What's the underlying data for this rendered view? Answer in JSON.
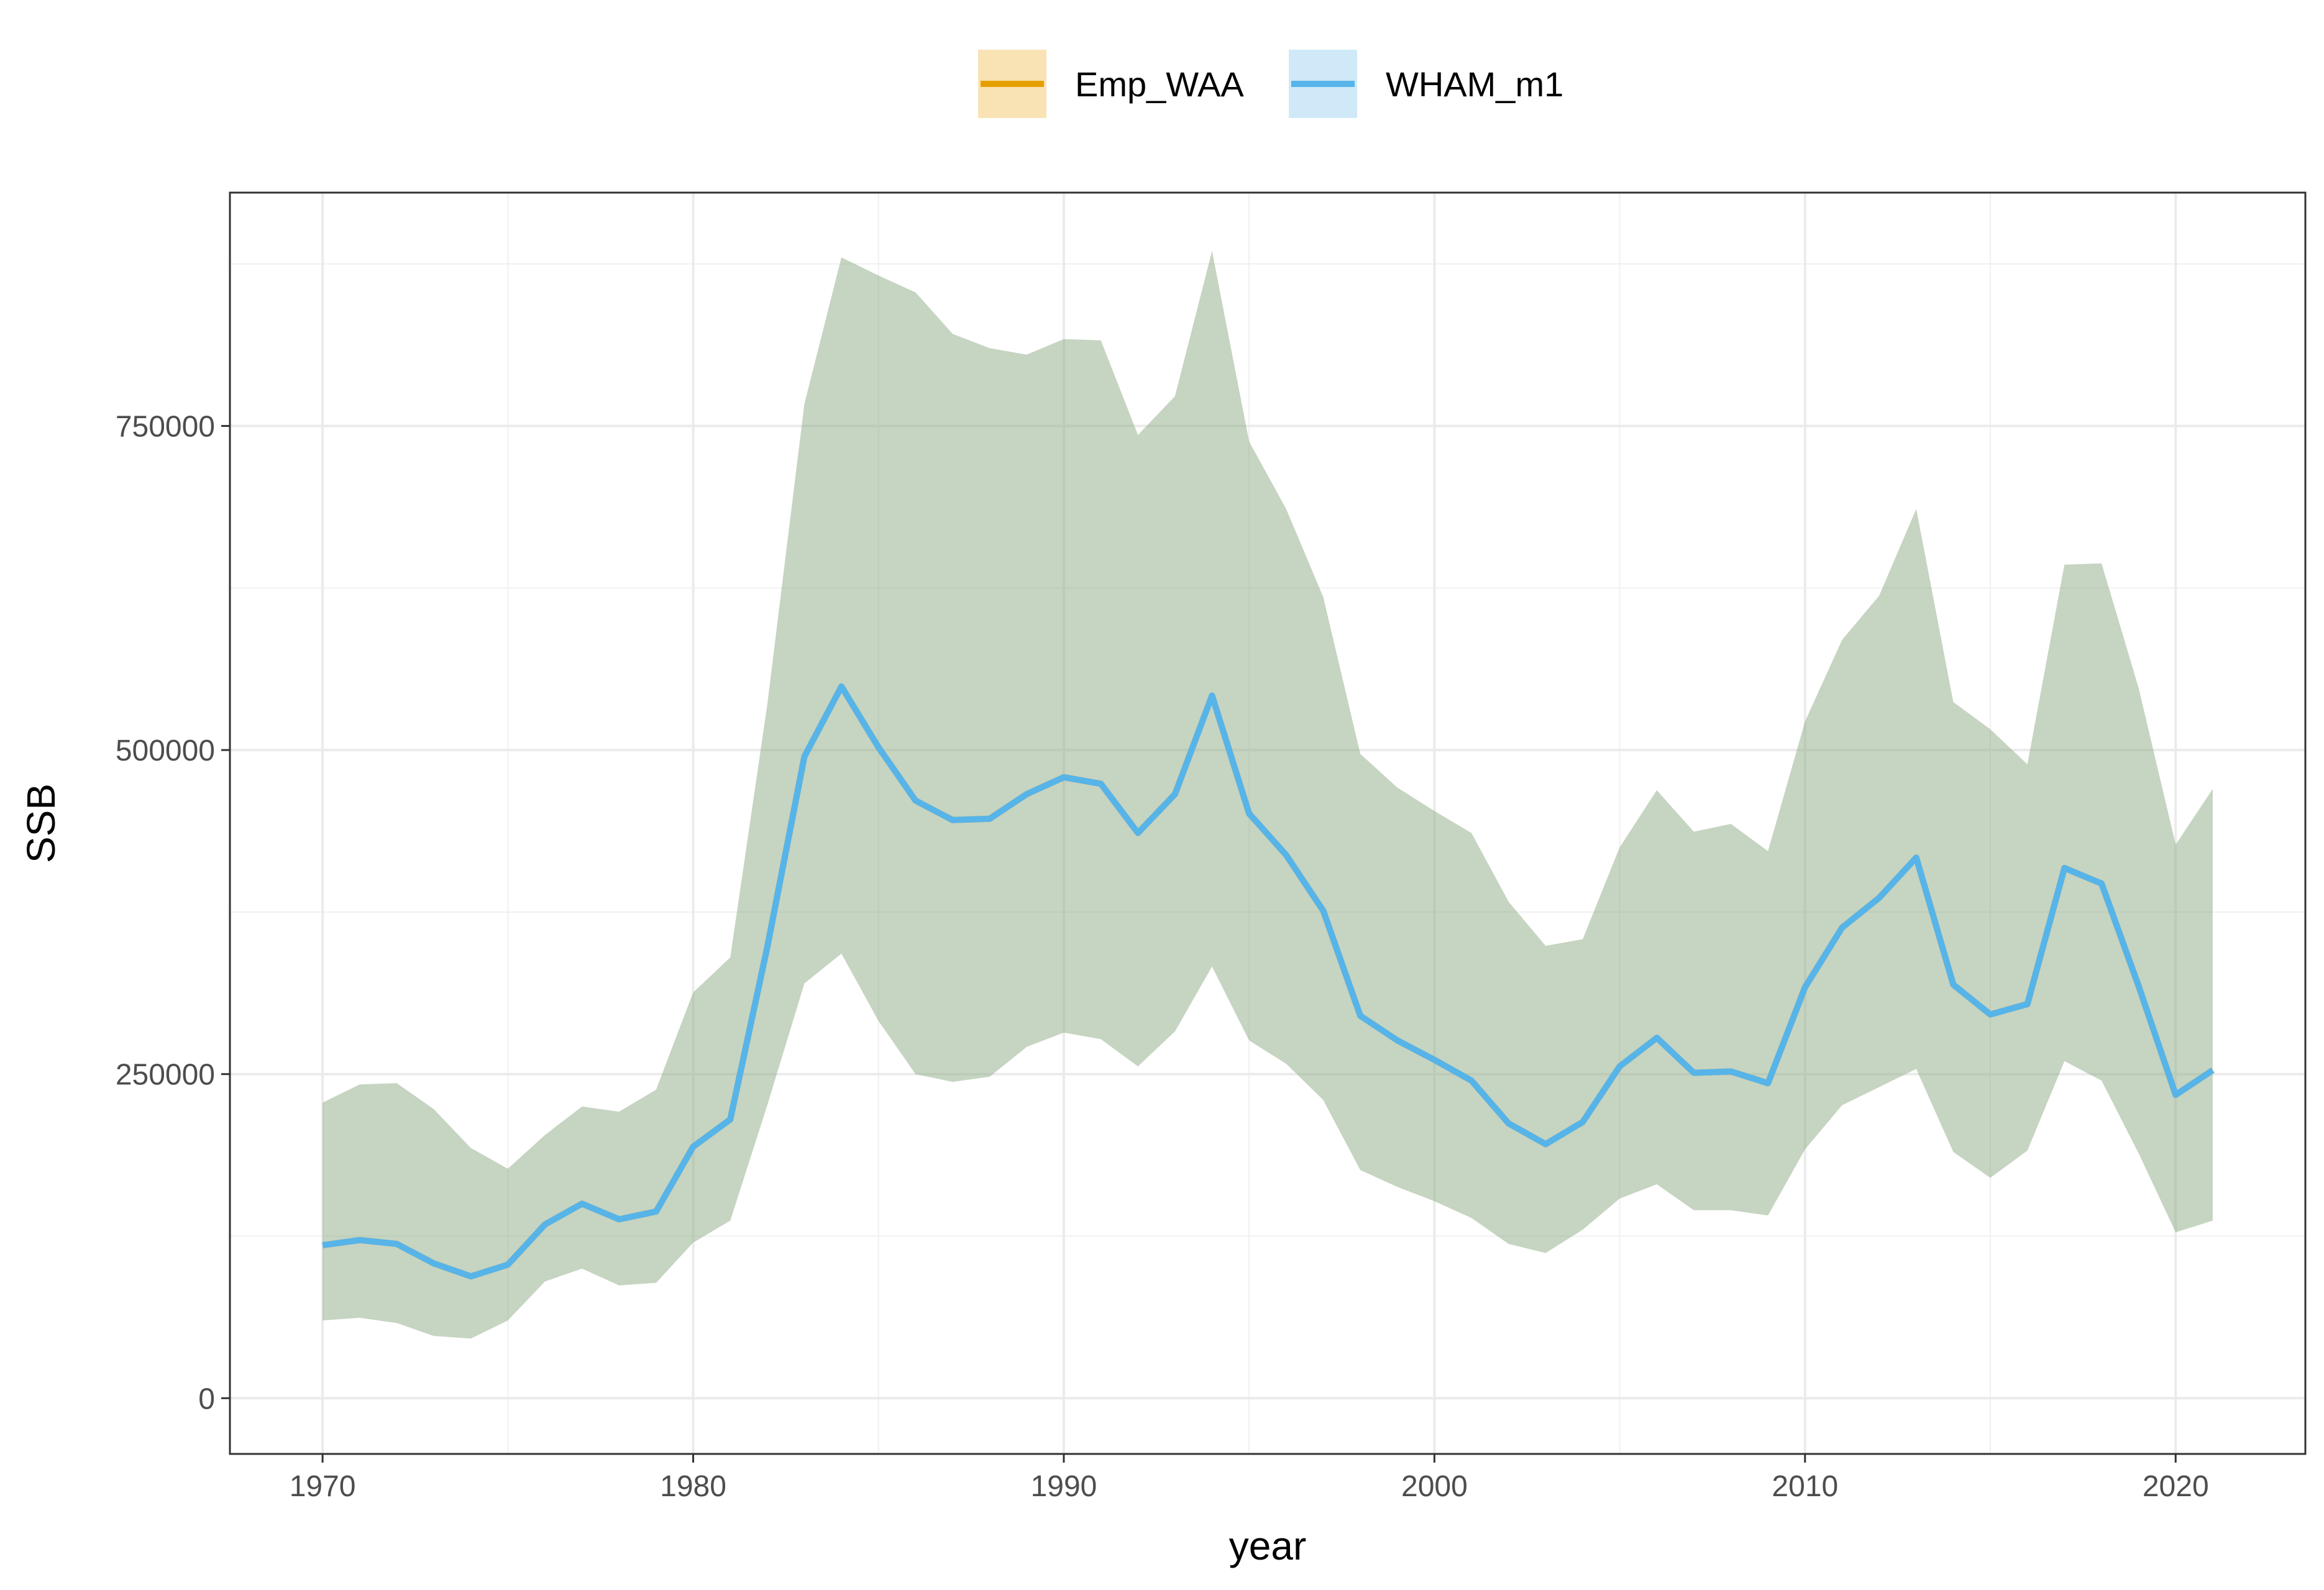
{
  "chart_data": {
    "type": "line",
    "xlabel": "year",
    "ylabel": "SSB",
    "xlim": [
      1967.5,
      2023.5
    ],
    "ylim": [
      -43000,
      930000
    ],
    "x_ticks": [
      1970,
      1980,
      1990,
      2000,
      2010,
      2020
    ],
    "y_ticks": [
      0,
      250000,
      500000,
      750000
    ],
    "x_tick_labels": [
      "1970",
      "1980",
      "1990",
      "2000",
      "2010",
      "2020"
    ],
    "y_tick_labels": [
      "0",
      "250000",
      "500000",
      "750000"
    ],
    "grid": true,
    "legend_position": "top",
    "x": [
      1970,
      1971,
      1972,
      1973,
      1974,
      1975,
      1976,
      1977,
      1978,
      1979,
      1980,
      1981,
      1982,
      1983,
      1984,
      1985,
      1986,
      1987,
      1988,
      1989,
      1990,
      1991,
      1992,
      1993,
      1994,
      1995,
      1996,
      1997,
      1998,
      1999,
      2000,
      2001,
      2002,
      2003,
      2004,
      2005,
      2006,
      2007,
      2008,
      2009,
      2010,
      2011,
      2012,
      2013,
      2014,
      2015,
      2016,
      2017,
      2018,
      2019,
      2020,
      2021
    ],
    "series": [
      {
        "name": "Emp_WAA",
        "color": "#E69F00",
        "fill": "#F9E3B5",
        "values": [
          118000,
          122000,
          119000,
          104000,
          94000,
          103000,
          134000,
          150000,
          138000,
          144000,
          194000,
          215000,
          348000,
          495000,
          549000,
          502000,
          461000,
          446000,
          447000,
          466000,
          479000,
          474000,
          436000,
          466000,
          542000,
          451000,
          419000,
          376000,
          295000,
          276000,
          261000,
          245000,
          212000,
          196000,
          213000,
          256000,
          278000,
          251000,
          252000,
          243000,
          317000,
          363000,
          386000,
          417000,
          319000,
          296000,
          304000,
          409000,
          397000,
          318000,
          234000,
          253000
        ],
        "lower": [
          60000,
          62000,
          58000,
          48000,
          46000,
          60000,
          90000,
          100000,
          87000,
          89000,
          120000,
          137000,
          226000,
          320000,
          343000,
          291000,
          250000,
          244000,
          248000,
          271000,
          282000,
          277000,
          256000,
          283000,
          333000,
          276000,
          258000,
          230000,
          176000,
          163000,
          152000,
          139000,
          119000,
          112000,
          130000,
          154000,
          165000,
          145000,
          145000,
          141000,
          192000,
          226000,
          240000,
          254000,
          190000,
          170000,
          191000,
          260000,
          245000,
          189000,
          128000,
          137000
        ],
        "upper": [
          228000,
          242000,
          243000,
          223000,
          193000,
          177000,
          203000,
          225000,
          221000,
          238000,
          313000,
          340000,
          535000,
          767000,
          880000,
          866000,
          853000,
          821000,
          810000,
          805000,
          817000,
          816000,
          743000,
          773000,
          885000,
          738000,
          686000,
          618000,
          497000,
          471000,
          453000,
          436000,
          383000,
          349000,
          354000,
          425000,
          469000,
          437000,
          443000,
          422000,
          522000,
          585000,
          619000,
          686000,
          537000,
          516000,
          489000,
          643000,
          644000,
          548000,
          427000,
          470000
        ]
      },
      {
        "name": "WHAM_m1",
        "color": "#56B4E9",
        "fill": "#CFE9F8",
        "values": [
          118000,
          122000,
          119000,
          104000,
          94000,
          103000,
          134000,
          150000,
          138000,
          144000,
          194000,
          215000,
          348000,
          495000,
          549000,
          502000,
          461000,
          446000,
          447000,
          466000,
          479000,
          474000,
          436000,
          466000,
          542000,
          451000,
          419000,
          376000,
          295000,
          276000,
          261000,
          245000,
          212000,
          196000,
          213000,
          256000,
          278000,
          251000,
          252000,
          243000,
          317000,
          363000,
          386000,
          417000,
          319000,
          296000,
          304000,
          409000,
          397000,
          318000,
          234000,
          253000
        ],
        "lower": [
          60000,
          62000,
          58000,
          48000,
          46000,
          60000,
          90000,
          100000,
          87000,
          89000,
          120000,
          137000,
          226000,
          320000,
          343000,
          291000,
          250000,
          244000,
          248000,
          271000,
          282000,
          277000,
          256000,
          283000,
          333000,
          276000,
          258000,
          230000,
          176000,
          163000,
          152000,
          139000,
          119000,
          112000,
          130000,
          154000,
          165000,
          145000,
          145000,
          141000,
          192000,
          226000,
          240000,
          254000,
          190000,
          170000,
          191000,
          260000,
          245000,
          189000,
          128000,
          137000
        ],
        "upper": [
          228000,
          242000,
          243000,
          223000,
          193000,
          177000,
          203000,
          225000,
          221000,
          238000,
          313000,
          340000,
          535000,
          767000,
          880000,
          866000,
          853000,
          821000,
          810000,
          805000,
          817000,
          816000,
          743000,
          773000,
          885000,
          738000,
          686000,
          618000,
          497000,
          471000,
          453000,
          436000,
          383000,
          349000,
          354000,
          425000,
          469000,
          437000,
          443000,
          422000,
          522000,
          585000,
          619000,
          686000,
          537000,
          516000,
          489000,
          643000,
          644000,
          548000,
          427000,
          470000
        ]
      }
    ]
  }
}
